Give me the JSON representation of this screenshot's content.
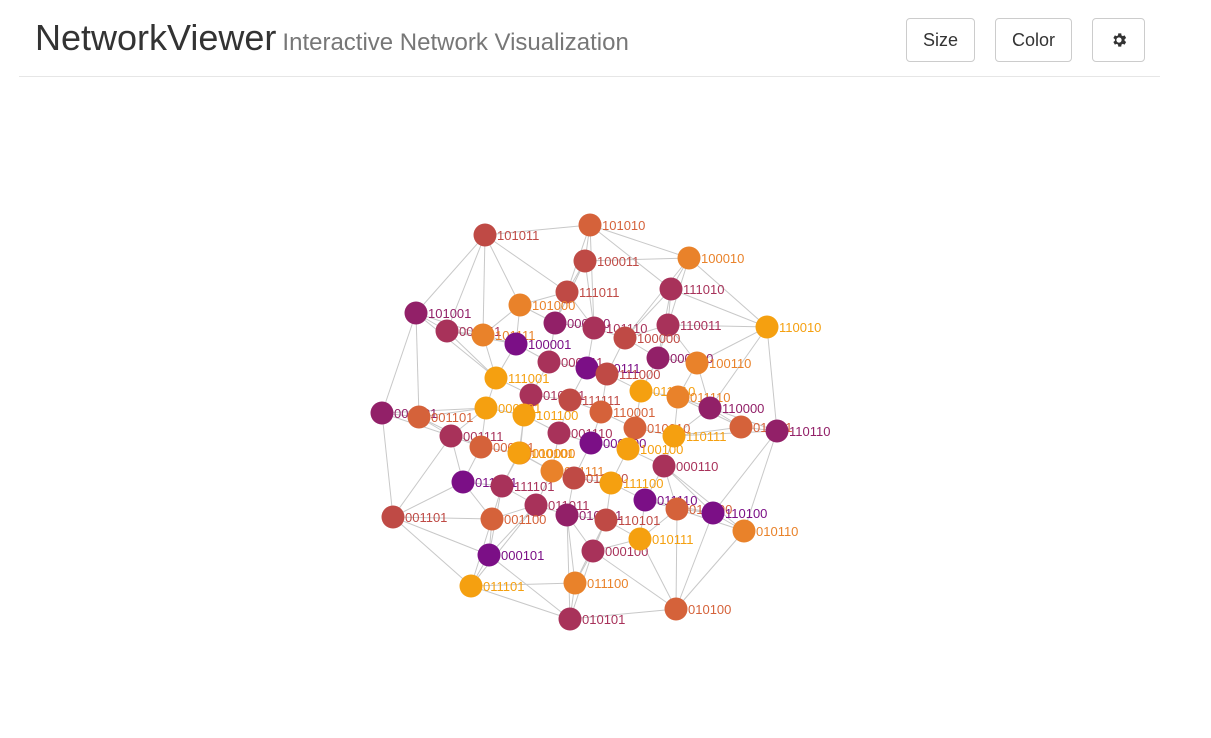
{
  "header": {
    "title": "NetworkViewer",
    "subtitle": "Interactive Network Visualization"
  },
  "toolbar": {
    "size_label": "Size",
    "color_label": "Color",
    "settings_icon": "gear-icon"
  },
  "palette": [
    "#7b0f86",
    "#922068",
    "#a8325a",
    "#bf4a45",
    "#d5623a",
    "#e9822a",
    "#f5a010"
  ],
  "edge_color": "#c8c8c8",
  "network": {
    "nodes": [
      {
        "id": "101011",
        "c": 3
      },
      {
        "id": "101010",
        "c": 4
      },
      {
        "id": "100010",
        "c": 5
      },
      {
        "id": "100011",
        "c": 3
      },
      {
        "id": "111011",
        "c": 3
      },
      {
        "id": "111010",
        "c": 2
      },
      {
        "id": "101000",
        "c": 5
      },
      {
        "id": "101001",
        "c": 1
      },
      {
        "id": "001011",
        "c": 2
      },
      {
        "id": "101111",
        "c": 5
      },
      {
        "id": "100001",
        "c": 0
      },
      {
        "id": "000010",
        "c": 1
      },
      {
        "id": "101110",
        "c": 2
      },
      {
        "id": "110011",
        "c": 2
      },
      {
        "id": "110010",
        "c": 6
      },
      {
        "id": "100000",
        "c": 3
      },
      {
        "id": "000011",
        "c": 2
      },
      {
        "id": "100111",
        "c": 0
      },
      {
        "id": "111000",
        "c": 3
      },
      {
        "id": "000000",
        "c": 1
      },
      {
        "id": "100110",
        "c": 5
      },
      {
        "id": "111001",
        "c": 6
      },
      {
        "id": "010011",
        "c": 2
      },
      {
        "id": "111111",
        "c": 3
      },
      {
        "id": "011010",
        "c": 6
      },
      {
        "id": "011110",
        "c": 5
      },
      {
        "id": "000001",
        "c": 1
      },
      {
        "id": "001101",
        "c": 4
      },
      {
        "id": "000101",
        "c": 6
      },
      {
        "id": "101100",
        "c": 6
      },
      {
        "id": "110001",
        "c": 4
      },
      {
        "id": "110000",
        "c": 1
      },
      {
        "id": "011111",
        "c": 4
      },
      {
        "id": "110110",
        "c": 1
      },
      {
        "id": "001111",
        "c": 2
      },
      {
        "id": "000111",
        "c": 4
      },
      {
        "id": "001110",
        "c": 2
      },
      {
        "id": "000100",
        "c": 0
      },
      {
        "id": "010010",
        "c": 4
      },
      {
        "id": "110111",
        "c": 6
      },
      {
        "id": "010000",
        "c": 5
      },
      {
        "id": "100100",
        "c": 6
      },
      {
        "id": "100101",
        "c": 6
      },
      {
        "id": "011001",
        "c": 0
      },
      {
        "id": "111101",
        "c": 2
      },
      {
        "id": "000110",
        "c": 2
      },
      {
        "id": "001111",
        "c": 5
      },
      {
        "id": "011000",
        "c": 3
      },
      {
        "id": "111100",
        "c": 6
      },
      {
        "id": "011011",
        "c": 2
      },
      {
        "id": "011110",
        "c": 0
      },
      {
        "id": "001101",
        "c": 3
      },
      {
        "id": "001100",
        "c": 4
      },
      {
        "id": "010001",
        "c": 1
      },
      {
        "id": "110101",
        "c": 3
      },
      {
        "id": "010100",
        "c": 4
      },
      {
        "id": "110100",
        "c": 0
      },
      {
        "id": "010110",
        "c": 5
      },
      {
        "id": "000100",
        "c": 2
      },
      {
        "id": "010111",
        "c": 6
      },
      {
        "id": "000101",
        "c": 0
      },
      {
        "id": "011100",
        "c": 5
      },
      {
        "id": "011101",
        "c": 6
      },
      {
        "id": "010101",
        "c": 2
      },
      {
        "id": "010100",
        "c": 4
      }
    ]
  }
}
